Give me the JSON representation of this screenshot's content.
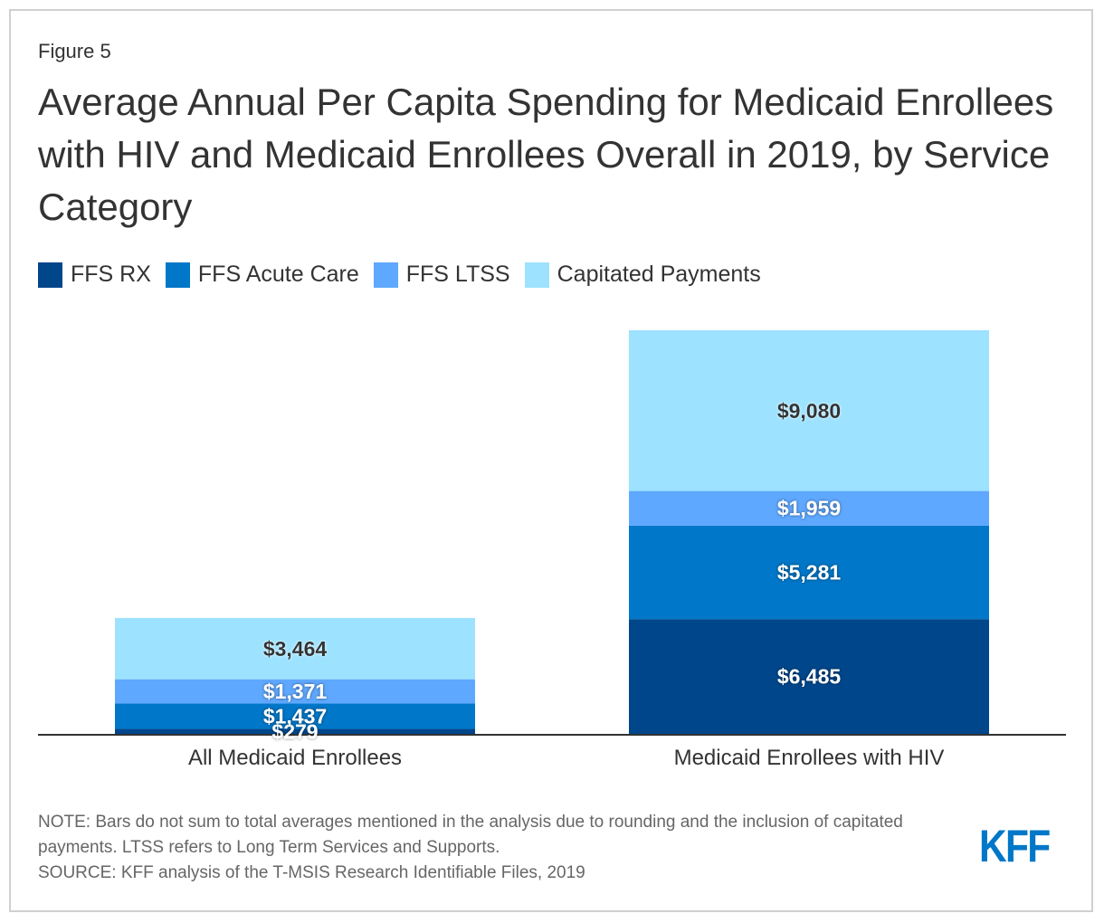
{
  "figure_label": "Figure 5",
  "title": "Average Annual Per Capita Spending for Medicaid Enrollees with HIV and Medicaid Enrollees Overall in 2019, by Service Category",
  "legend": [
    {
      "name": "FFS RX",
      "color": "#00468b"
    },
    {
      "name": "FFS Acute Care",
      "color": "#0077c8"
    },
    {
      "name": "FFS LTSS",
      "color": "#5fa8ff"
    },
    {
      "name": "Capitated Payments",
      "color": "#9de2ff"
    }
  ],
  "chart_data": {
    "type": "bar",
    "stacked": true,
    "title": "Average Annual Per Capita Spending for Medicaid Enrollees with HIV and Medicaid Enrollees Overall in 2019, by Service Category",
    "xlabel": "",
    "ylabel": "",
    "categories": [
      "All Medicaid Enrollees",
      "Medicaid Enrollees with HIV"
    ],
    "series": [
      {
        "name": "FFS RX",
        "color": "#00468b",
        "values": [
          279,
          6485
        ],
        "labels": [
          "$279",
          "$6,485"
        ],
        "label_color": "#ffffff"
      },
      {
        "name": "FFS Acute Care",
        "color": "#0077c8",
        "values": [
          1437,
          5281
        ],
        "labels": [
          "$1,437",
          "$5,281"
        ],
        "label_color": "#ffffff"
      },
      {
        "name": "FFS LTSS",
        "color": "#5fa8ff",
        "values": [
          1371,
          1959
        ],
        "labels": [
          "$1,371",
          "$1,959"
        ],
        "label_color": "#ffffff"
      },
      {
        "name": "Capitated Payments",
        "color": "#9de2ff",
        "values": [
          3464,
          9080
        ],
        "labels": [
          "$3,464",
          "$9,080"
        ],
        "label_color": "#333333"
      }
    ],
    "ylim": [
      0,
      22805
    ],
    "grid": false,
    "legend_position": "top-left"
  },
  "notes": {
    "note": "NOTE: Bars do not sum to total averages mentioned in the analysis due to rounding and the inclusion of capitated payments. LTSS refers to Long Term Services and Supports.",
    "source": "SOURCE: KFF analysis of the T-MSIS Research Identifiable Files, 2019"
  },
  "logo": "KFF"
}
